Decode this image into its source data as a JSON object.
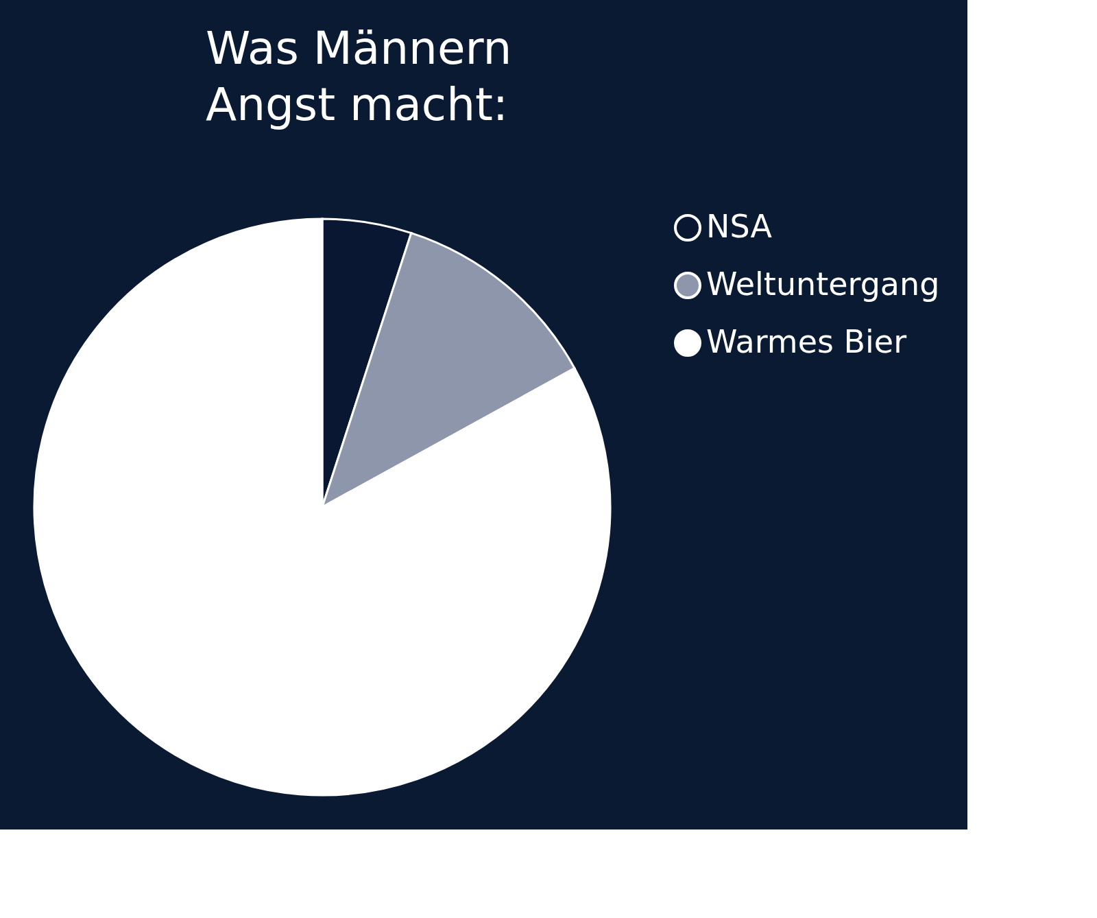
{
  "chart_data": {
    "type": "pie",
    "title": "Was Männern\nAngst macht:",
    "categories": [
      "NSA",
      "Weltuntergang",
      "Warmes Bier"
    ],
    "values": [
      5,
      12,
      83
    ],
    "colors": [
      "#0a1733",
      "#8d96ab",
      "#ffffff"
    ],
    "legend": "right"
  }
}
